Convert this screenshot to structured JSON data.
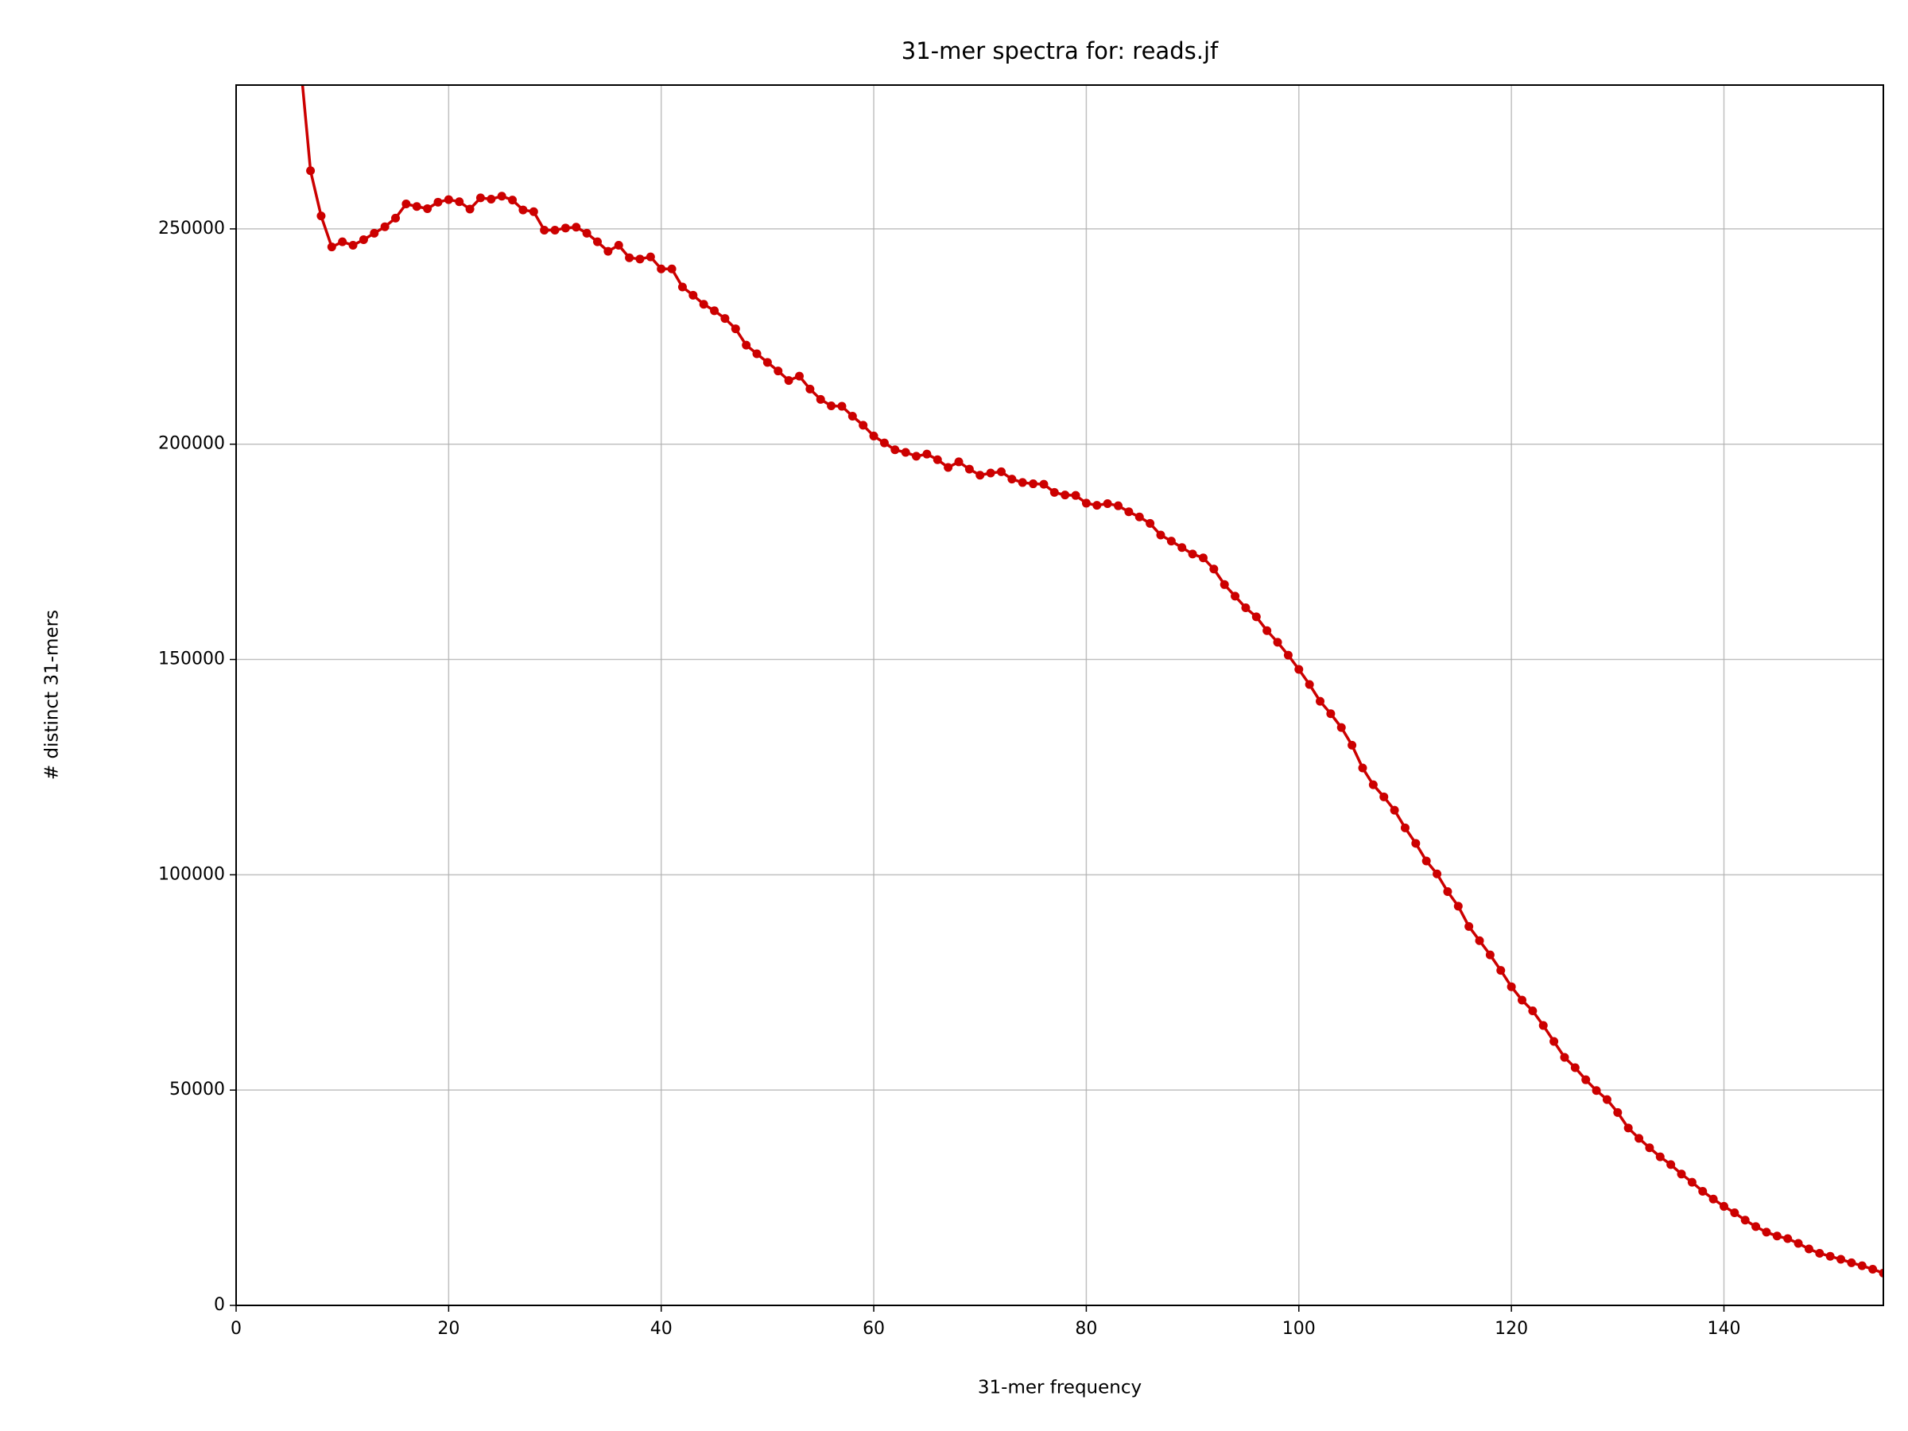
{
  "chart_data": {
    "type": "line",
    "title": "31-mer spectra for: reads.jf",
    "x_label": "31-mer frequency",
    "y_label": "# distinct 31-mers",
    "x": [
      6,
      7,
      8,
      9,
      10,
      11,
      12,
      13,
      14,
      15,
      16,
      17,
      18,
      19,
      20,
      21,
      22,
      23,
      24,
      25,
      26,
      27,
      28,
      29,
      30,
      31,
      32,
      33,
      34,
      35,
      36,
      37,
      38,
      39,
      40,
      41,
      42,
      43,
      44,
      45,
      46,
      47,
      48,
      49,
      50,
      51,
      52,
      53,
      54,
      55,
      56,
      57,
      58,
      59,
      60,
      61,
      62,
      63,
      64,
      65,
      66,
      67,
      68,
      69,
      70,
      71,
      72,
      73,
      74,
      75,
      76,
      77,
      78,
      79,
      80,
      81,
      82,
      83,
      84,
      85,
      86,
      87,
      88,
      89,
      90,
      91,
      92,
      93,
      94,
      95,
      96,
      97,
      98,
      99,
      100,
      101,
      102,
      103,
      104,
      105,
      106,
      107,
      108,
      109,
      110,
      111,
      112,
      113,
      114,
      115,
      116,
      117,
      118,
      119,
      120,
      121,
      122,
      123,
      124,
      125,
      126,
      127,
      128,
      129,
      130,
      131,
      132,
      133,
      134,
      135,
      136,
      137,
      138,
      139,
      140,
      141,
      142,
      143,
      144,
      145,
      146,
      147,
      148,
      149,
      150,
      151,
      152,
      153,
      154,
      155
    ],
    "values": [
      290000,
      263500,
      253000,
      245800,
      247000,
      246200,
      247500,
      249000,
      250500,
      252500,
      255800,
      255200,
      254700,
      256200,
      256800,
      256300,
      254600,
      257200,
      256900,
      257600,
      256700,
      254400,
      254000,
      249700,
      249700,
      250200,
      250400,
      249000,
      247000,
      244800,
      246200,
      243300,
      243000,
      243500,
      240700,
      240700,
      236500,
      234600,
      232500,
      231000,
      229200,
      226800,
      223000,
      221000,
      219000,
      217000,
      214800,
      215800,
      212800,
      210400,
      208900,
      208800,
      206500,
      204400,
      201900,
      200300,
      198700,
      198100,
      197200,
      197700,
      196400,
      194600,
      195900,
      194200,
      192800,
      193300,
      193600,
      191900,
      191100,
      190800,
      190700,
      188800,
      188200,
      188100,
      186300,
      185800,
      186200,
      185700,
      184300,
      183100,
      181600,
      178900,
      177500,
      176000,
      174500,
      173600,
      171000,
      167400,
      164700,
      162000,
      159900,
      156700,
      154000,
      151000,
      147700,
      144200,
      140300,
      137400,
      134200,
      130100,
      124800,
      120900,
      118100,
      115000,
      110900,
      107300,
      103200,
      100200,
      96100,
      92700,
      88000,
      84700,
      81400,
      77800,
      74000,
      70900,
      68400,
      65000,
      61300,
      57600,
      55200,
      52400,
      49900,
      47800,
      44800,
      41200,
      38800,
      36600,
      34500,
      32700,
      30500,
      28600,
      26500,
      24700,
      23000,
      21500,
      19800,
      18300,
      17000,
      16100,
      15500,
      14400,
      13100,
      12100,
      11400,
      10700,
      9900,
      9200,
      8400,
      7500
    ],
    "color": "#cc0000",
    "xlim": [
      0,
      155
    ],
    "ylim": [
      0,
      283400
    ],
    "xticks": [
      0,
      20,
      40,
      60,
      80,
      100,
      120,
      140
    ],
    "yticks": [
      0,
      50000,
      100000,
      150000,
      200000,
      250000
    ],
    "grid": true
  }
}
